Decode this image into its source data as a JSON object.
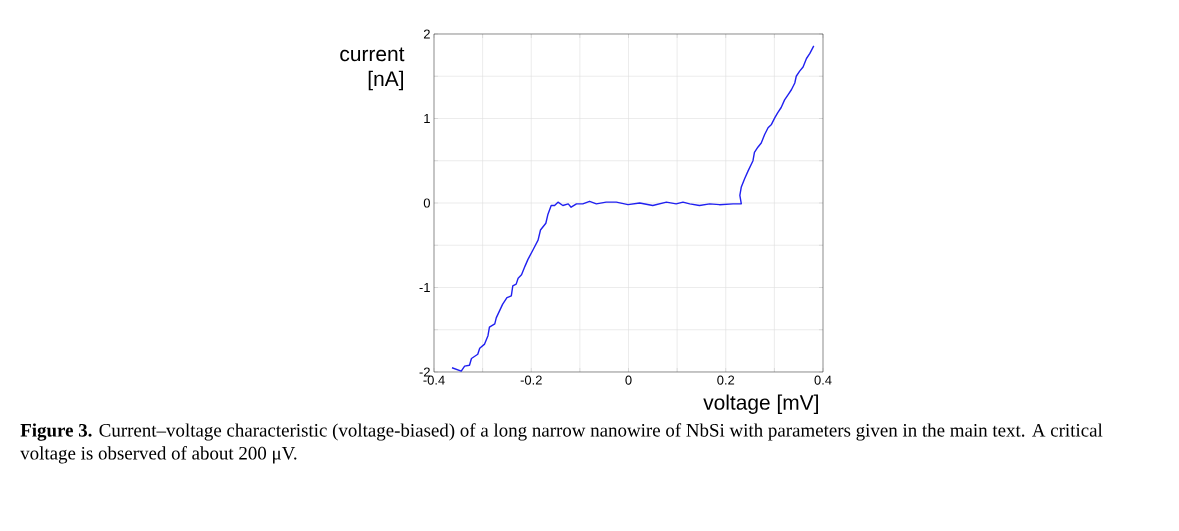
{
  "chart_data": {
    "type": "line",
    "xlabel": "voltage [mV]",
    "ylabel": "current [nA]",
    "annotations": [
      "**Figure 3.** Current–voltage characteristic (voltage-biased) of a long narrow nanowire of NbSi with parameters given in the main text. A critical voltage is observed of about 200 μV."
    ],
    "x": [
      -0.363,
      -0.344,
      -0.337,
      -0.327,
      -0.323,
      -0.31,
      -0.306,
      -0.296,
      -0.289,
      -0.286,
      -0.275,
      -0.272,
      -0.259,
      -0.25,
      -0.241,
      -0.238,
      -0.231,
      -0.227,
      -0.22,
      -0.213,
      -0.207,
      -0.196,
      -0.186,
      -0.181,
      -0.17,
      -0.166,
      -0.159,
      -0.152,
      -0.145,
      -0.135,
      -0.124,
      -0.118,
      -0.107,
      -0.094,
      -0.08,
      -0.066,
      -0.046,
      -0.025,
      -0.001,
      0.023,
      0.05,
      0.078,
      0.098,
      0.112,
      0.126,
      0.146,
      0.167,
      0.187,
      0.215,
      0.232,
      0.229,
      0.232,
      0.239,
      0.246,
      0.256,
      0.259,
      0.266,
      0.273,
      0.28,
      0.287,
      0.294,
      0.301,
      0.307,
      0.314,
      0.321,
      0.328,
      0.335,
      0.342,
      0.345,
      0.352,
      0.359,
      0.366,
      0.373,
      0.381
    ],
    "values": [
      -1.95,
      -1.99,
      -1.93,
      -1.92,
      -1.84,
      -1.79,
      -1.72,
      -1.67,
      -1.57,
      -1.47,
      -1.43,
      -1.36,
      -1.2,
      -1.12,
      -1.1,
      -0.98,
      -0.96,
      -0.89,
      -0.85,
      -0.75,
      -0.67,
      -0.55,
      -0.44,
      -0.32,
      -0.24,
      -0.14,
      -0.03,
      -0.03,
      0.01,
      -0.03,
      -0.01,
      -0.05,
      -0.01,
      -0.01,
      0.02,
      -0.01,
      0.01,
      0.01,
      -0.02,
      0.0,
      -0.03,
      0.01,
      -0.01,
      0.01,
      -0.01,
      -0.03,
      -0.01,
      -0.02,
      -0.01,
      -0.01,
      0.09,
      0.19,
      0.29,
      0.38,
      0.5,
      0.6,
      0.66,
      0.71,
      0.81,
      0.89,
      0.93,
      1.01,
      1.07,
      1.13,
      1.22,
      1.28,
      1.34,
      1.42,
      1.5,
      1.56,
      1.61,
      1.71,
      1.77,
      1.86
    ],
    "color": "#2020f0",
    "marker": "none",
    "line_style": "solid",
    "grid": true,
    "xlim": [
      -0.4,
      0.4
    ],
    "ylim": [
      -2,
      2
    ],
    "xticks": [
      -0.4,
      {
        "value": -0.3,
        "label": null
      },
      -0.2,
      {
        "value": -0.1,
        "label": null
      },
      0,
      {
        "value": 0.1,
        "label": null
      },
      0.2,
      {
        "value": 0.3,
        "label": null
      },
      0.4
    ],
    "yticks": [
      -2,
      {
        "value": -1.5,
        "label": null
      },
      -1,
      {
        "value": -0.5,
        "label": null
      },
      0,
      {
        "value": 0.5,
        "label": null
      },
      1,
      {
        "value": 1.5,
        "label": null
      },
      2
    ]
  }
}
